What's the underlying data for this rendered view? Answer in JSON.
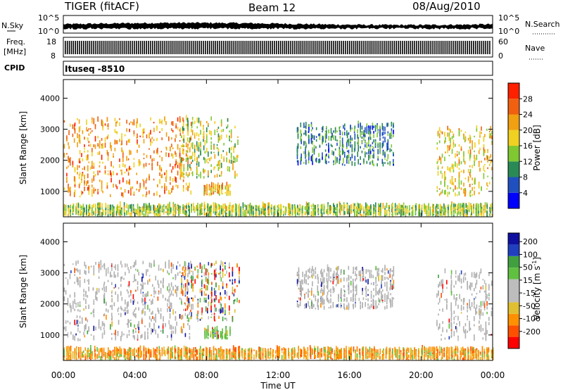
{
  "header": {
    "station": "TIGER (fitACF)",
    "beam": "Beam 12",
    "date": "08/Aug/2010"
  },
  "noise_panel": {
    "left_label": "N.Sky",
    "left_ticks": [
      "10^5",
      "10^0"
    ],
    "right_label": "N.Search",
    "right_ticks": [
      "10^5",
      "10^0"
    ]
  },
  "freq_panel": {
    "left_label_line1": "Freq.",
    "left_label_line2": "[MHz]",
    "left_ticks": [
      "18",
      "8"
    ],
    "right_label": "Nave",
    "right_ticks": [
      "60",
      "0"
    ]
  },
  "cpid": {
    "label": "CPID",
    "value": "Ituseq -8510"
  },
  "x_axis": {
    "title": "Time UT",
    "ticks": [
      "00:00",
      "04:00",
      "08:00",
      "12:00",
      "16:00",
      "20:00",
      "00:00"
    ]
  },
  "colors": {
    "power_scale": [
      "#0000ff",
      "#2050c0",
      "#2a8a55",
      "#7fc832",
      "#f0d020",
      "#f0a010",
      "#f06010",
      "#ff2000"
    ],
    "velocity_scale": [
      "#ff0000",
      "#ff5000",
      "#ff9000",
      "#e0c030",
      "#bdbdbd",
      "#bdbdbd",
      "#60c040",
      "#40a040",
      "#2040c0",
      "#1010a0"
    ],
    "ground_scatter": "#b0b0b0"
  },
  "chart_data": [
    {
      "type": "heatmap",
      "panel": "power",
      "ylabel": "Slant Range [km]",
      "yticks": [
        1000,
        2000,
        3000,
        4000
      ],
      "ylim": [
        180,
        4600
      ],
      "xlim": [
        0,
        24
      ],
      "colorbar": {
        "label": "Power [dB]",
        "ticks": [
          "4",
          "8",
          "12",
          "16",
          "20",
          "24",
          "28"
        ],
        "range": [
          0,
          30
        ]
      },
      "scatter_regions": [
        {
          "t_start": 0.0,
          "t_end": 7.2,
          "range_low": 800,
          "range_high": 3300,
          "power_core": 22
        },
        {
          "t_start": 6.5,
          "t_end": 9.8,
          "range_low": 1400,
          "range_high": 3300,
          "power_core": 15
        },
        {
          "t_start": 7.8,
          "t_end": 9.3,
          "range_low": 850,
          "range_high": 1150,
          "power_core": 20
        },
        {
          "t_start": 13.0,
          "t_end": 18.5,
          "range_low": 1800,
          "range_high": 3100,
          "power_core": 8
        },
        {
          "t_start": 20.8,
          "t_end": 24.0,
          "range_low": 800,
          "range_high": 3000,
          "power_core": 18
        },
        {
          "t_start": 0.0,
          "t_end": 24.0,
          "range_low": 180,
          "range_high": 500,
          "power_core": 14
        }
      ]
    },
    {
      "type": "heatmap",
      "panel": "velocity",
      "ylabel": "Slant Range [km]",
      "yticks": [
        1000,
        2000,
        3000,
        4000
      ],
      "ylim": [
        180,
        4600
      ],
      "xlim": [
        0,
        24
      ],
      "colorbar": {
        "label": "Velocity [m s^-1]",
        "ticks": [
          "200",
          "100",
          "50",
          "15",
          "-15",
          "-50",
          "-100",
          "-200"
        ],
        "range": [
          -250,
          250
        ]
      },
      "scatter_regions": [
        {
          "t_start": 0.0,
          "t_end": 7.2,
          "range_low": 800,
          "range_high": 3300,
          "dominant": "ground_scatter"
        },
        {
          "t_start": 6.5,
          "t_end": 9.8,
          "range_low": 1400,
          "range_high": 3300,
          "dominant": "mixed"
        },
        {
          "t_start": 7.8,
          "t_end": 9.3,
          "range_low": 850,
          "range_high": 1150,
          "dominant": "15 to 50"
        },
        {
          "t_start": 13.0,
          "t_end": 18.5,
          "range_low": 1800,
          "range_high": 3100,
          "dominant": "ground_scatter"
        },
        {
          "t_start": 20.8,
          "t_end": 24.0,
          "range_low": 800,
          "range_high": 3000,
          "dominant": "ground_scatter"
        },
        {
          "t_start": 0.0,
          "t_end": 24.0,
          "range_low": 180,
          "range_high": 500,
          "dominant": "-50 to -100"
        }
      ]
    }
  ]
}
